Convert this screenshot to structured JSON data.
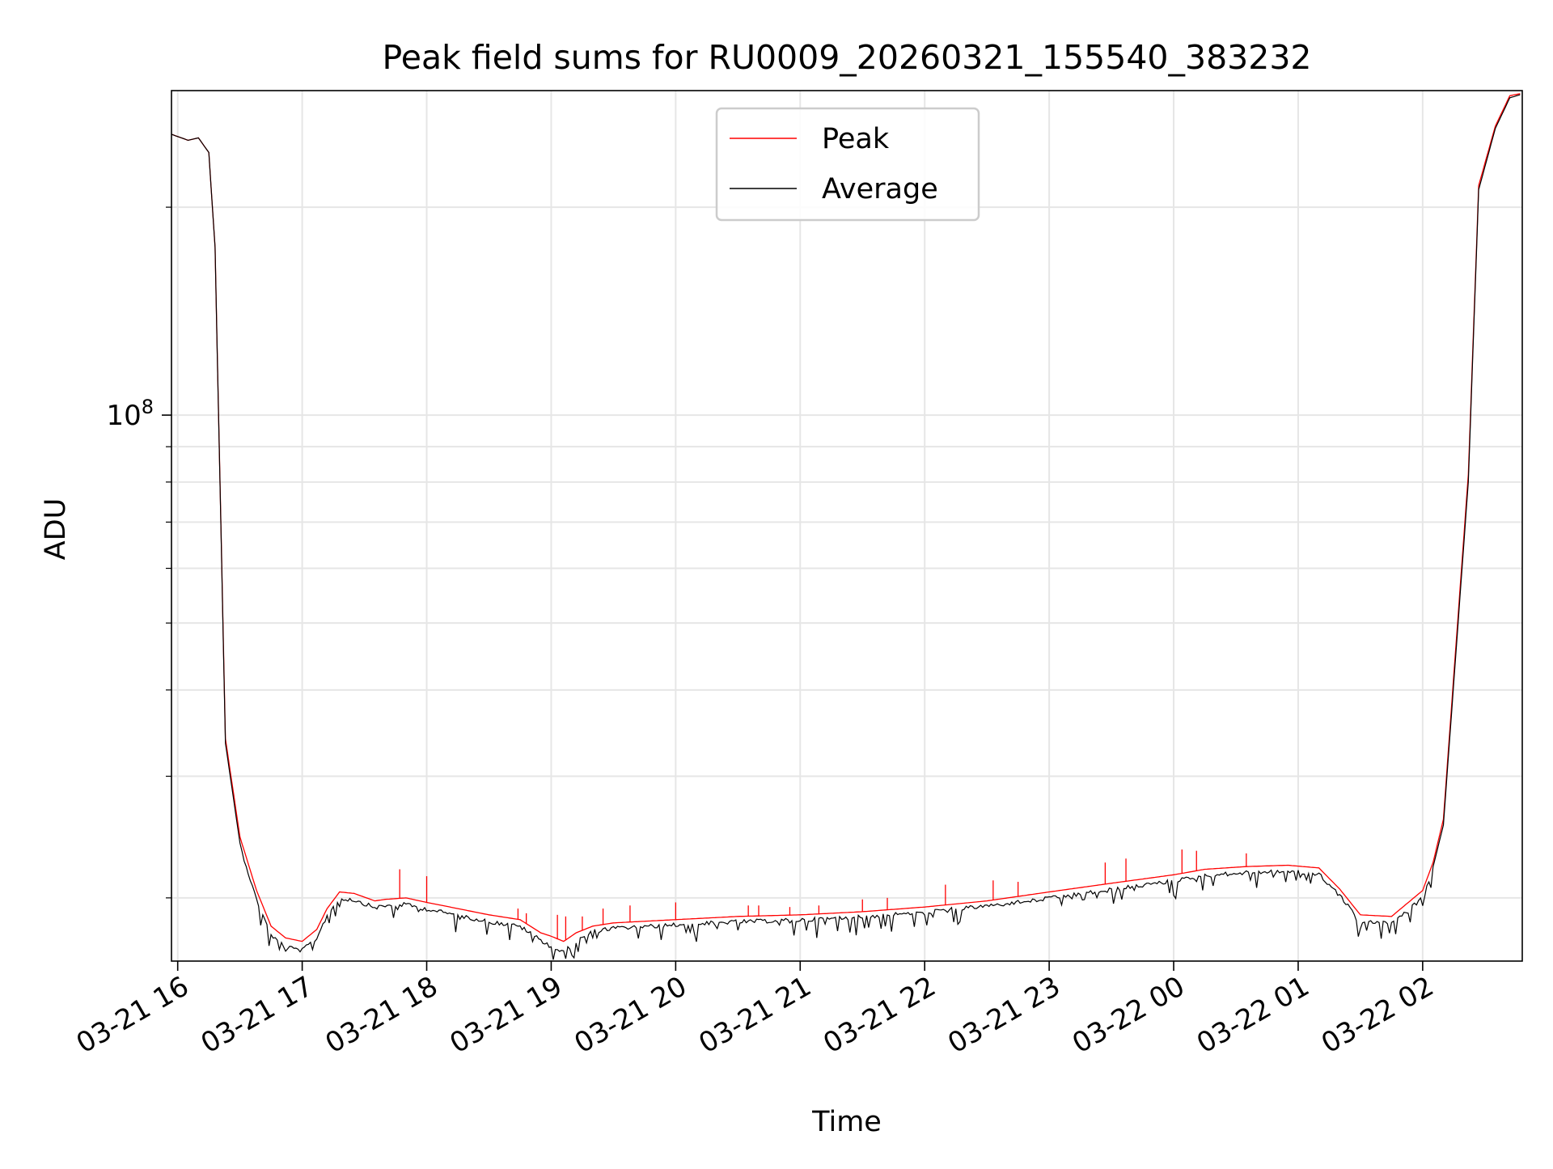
{
  "chart_data": {
    "type": "line",
    "title": "Peak field sums for RU0009_20260321_155540_383232",
    "xlabel": "Time",
    "ylabel": "ADU",
    "y_scale": "log",
    "ylim": [
      16200000,
      295000000
    ],
    "y_major_ticks": [
      {
        "value": 100000000,
        "label_base": "10",
        "label_exp": "8"
      }
    ],
    "y_minor_ticks": [
      20000000,
      30000000,
      40000000,
      50000000,
      60000000,
      70000000,
      80000000,
      90000000,
      200000000
    ],
    "xlim": [
      "2026-03-21 15:57",
      "2026-03-22 02:48"
    ],
    "x_ticks": [
      {
        "t": "2026-03-21 16:00",
        "label": "03-21 16"
      },
      {
        "t": "2026-03-21 17:00",
        "label": "03-21 17"
      },
      {
        "t": "2026-03-21 18:00",
        "label": "03-21 18"
      },
      {
        "t": "2026-03-21 19:00",
        "label": "03-21 19"
      },
      {
        "t": "2026-03-21 20:00",
        "label": "03-21 20"
      },
      {
        "t": "2026-03-21 21:00",
        "label": "03-21 21"
      },
      {
        "t": "2026-03-21 22:00",
        "label": "03-21 22"
      },
      {
        "t": "2026-03-21 23:00",
        "label": "03-21 23"
      },
      {
        "t": "2026-03-22 00:00",
        "label": "03-22 00"
      },
      {
        "t": "2026-03-22 01:00",
        "label": "03-22 01"
      },
      {
        "t": "2026-03-22 02:00",
        "label": "03-22 02"
      }
    ],
    "grid": true,
    "legend_position": "upper-center",
    "series": [
      {
        "name": "Peak",
        "color": "#ff0000",
        "x": [
          "2026-03-21 15:57",
          "2026-03-21 16:05",
          "2026-03-21 16:10",
          "2026-03-21 16:15",
          "2026-03-21 16:18",
          "2026-03-21 16:23",
          "2026-03-21 16:30",
          "2026-03-21 16:38",
          "2026-03-21 16:45",
          "2026-03-21 16:52",
          "2026-03-21 17:00",
          "2026-03-21 17:07",
          "2026-03-21 17:12",
          "2026-03-21 17:18",
          "2026-03-21 17:25",
          "2026-03-21 17:35",
          "2026-03-21 17:40",
          "2026-03-21 17:50",
          "2026-03-21 18:00",
          "2026-03-21 18:15",
          "2026-03-21 18:30",
          "2026-03-21 18:45",
          "2026-03-21 18:55",
          "2026-03-21 19:00",
          "2026-03-21 19:06",
          "2026-03-21 19:12",
          "2026-03-21 19:20",
          "2026-03-21 19:30",
          "2026-03-21 20:00",
          "2026-03-21 20:30",
          "2026-03-21 21:00",
          "2026-03-21 21:30",
          "2026-03-21 22:00",
          "2026-03-21 22:30",
          "2026-03-21 23:00",
          "2026-03-21 23:30",
          "2026-03-22 00:00",
          "2026-03-22 00:15",
          "2026-03-22 00:35",
          "2026-03-22 00:55",
          "2026-03-22 01:10",
          "2026-03-22 01:20",
          "2026-03-22 01:30",
          "2026-03-22 01:45",
          "2026-03-22 02:00",
          "2026-03-22 02:05",
          "2026-03-22 02:10",
          "2026-03-22 02:15",
          "2026-03-22 02:22",
          "2026-03-22 02:27",
          "2026-03-22 02:35",
          "2026-03-22 02:42",
          "2026-03-22 02:47"
        ],
        "y": [
          255000000,
          250000000,
          252000000,
          240000000,
          175000000,
          34000000,
          24500000,
          20500000,
          18200000,
          17500000,
          17300000,
          18000000,
          19300000,
          20400000,
          20300000,
          19800000,
          19900000,
          20000000,
          19700000,
          19300000,
          18900000,
          18600000,
          17800000,
          17600000,
          17300000,
          17800000,
          18200000,
          18400000,
          18600000,
          18800000,
          18900000,
          19100000,
          19400000,
          19800000,
          20400000,
          21000000,
          21600000,
          22000000,
          22200000,
          22300000,
          22100000,
          20600000,
          18900000,
          18800000,
          20500000,
          22500000,
          26000000,
          42000000,
          82000000,
          215000000,
          262000000,
          290000000,
          292000000
        ]
      },
      {
        "name": "Average",
        "color": "#000000",
        "x": [
          "2026-03-21 15:57",
          "2026-03-21 16:05",
          "2026-03-21 16:10",
          "2026-03-21 16:15",
          "2026-03-21 16:18",
          "2026-03-21 16:23",
          "2026-03-21 16:30",
          "2026-03-21 16:38",
          "2026-03-21 16:45",
          "2026-03-21 16:52",
          "2026-03-21 17:00",
          "2026-03-21 17:07",
          "2026-03-21 17:12",
          "2026-03-21 17:18",
          "2026-03-21 17:25",
          "2026-03-21 17:35",
          "2026-03-21 17:40",
          "2026-03-21 17:50",
          "2026-03-21 18:00",
          "2026-03-21 18:15",
          "2026-03-21 18:30",
          "2026-03-21 18:45",
          "2026-03-21 18:55",
          "2026-03-21 19:00",
          "2026-03-21 19:06",
          "2026-03-21 19:12",
          "2026-03-21 19:20",
          "2026-03-21 19:30",
          "2026-03-21 20:00",
          "2026-03-21 20:30",
          "2026-03-21 21:00",
          "2026-03-21 21:30",
          "2026-03-21 22:00",
          "2026-03-21 22:30",
          "2026-03-21 23:00",
          "2026-03-21 23:30",
          "2026-03-22 00:00",
          "2026-03-22 00:15",
          "2026-03-22 00:35",
          "2026-03-22 00:55",
          "2026-03-22 01:10",
          "2026-03-22 01:20",
          "2026-03-22 01:30",
          "2026-03-22 01:45",
          "2026-03-22 02:00",
          "2026-03-22 02:05",
          "2026-03-22 02:10",
          "2026-03-22 02:15",
          "2026-03-22 02:22",
          "2026-03-22 02:27",
          "2026-03-22 02:35",
          "2026-03-22 02:42",
          "2026-03-22 02:47"
        ],
        "y": [
          255000000,
          250000000,
          252000000,
          240000000,
          175000000,
          33500000,
          24000000,
          20000000,
          17800000,
          17100000,
          16900000,
          17600000,
          19000000,
          20100000,
          20000000,
          19500000,
          19600000,
          19700000,
          19400000,
          19000000,
          18600000,
          18300000,
          17500000,
          17100000,
          16800000,
          17400000,
          18000000,
          18200000,
          18400000,
          18600000,
          18700000,
          18900000,
          19200000,
          19600000,
          20100000,
          20700000,
          21300000,
          21700000,
          21900000,
          22000000,
          21800000,
          20300000,
          18600000,
          18500000,
          20200000,
          22200000,
          25500000,
          41000000,
          80000000,
          212000000,
          260000000,
          288000000,
          291000000
        ]
      }
    ],
    "peak_spikes": [
      {
        "t": "2026-03-21 17:47",
        "y": 22000000
      },
      {
        "t": "2026-03-21 18:00",
        "y": 21500000
      },
      {
        "t": "2026-03-21 18:44",
        "y": 19300000
      },
      {
        "t": "2026-03-21 18:48",
        "y": 19000000
      },
      {
        "t": "2026-03-21 19:03",
        "y": 18900000
      },
      {
        "t": "2026-03-21 19:07",
        "y": 18800000
      },
      {
        "t": "2026-03-21 19:15",
        "y": 18800000
      },
      {
        "t": "2026-03-21 19:25",
        "y": 19300000
      },
      {
        "t": "2026-03-21 19:38",
        "y": 19500000
      },
      {
        "t": "2026-03-21 20:00",
        "y": 19700000
      },
      {
        "t": "2026-03-21 20:35",
        "y": 19500000
      },
      {
        "t": "2026-03-21 20:40",
        "y": 19500000
      },
      {
        "t": "2026-03-21 20:55",
        "y": 19400000
      },
      {
        "t": "2026-03-21 21:09",
        "y": 19500000
      },
      {
        "t": "2026-03-21 21:30",
        "y": 19900000
      },
      {
        "t": "2026-03-21 21:42",
        "y": 20000000
      },
      {
        "t": "2026-03-21 22:10",
        "y": 20900000
      },
      {
        "t": "2026-03-21 22:33",
        "y": 21200000
      },
      {
        "t": "2026-03-21 22:45",
        "y": 21100000
      },
      {
        "t": "2026-03-21 23:27",
        "y": 22500000
      },
      {
        "t": "2026-03-21 23:37",
        "y": 22800000
      },
      {
        "t": "2026-03-22 00:04",
        "y": 23500000
      },
      {
        "t": "2026-03-22 00:11",
        "y": 23400000
      },
      {
        "t": "2026-03-22 00:35",
        "y": 23200000
      }
    ]
  }
}
